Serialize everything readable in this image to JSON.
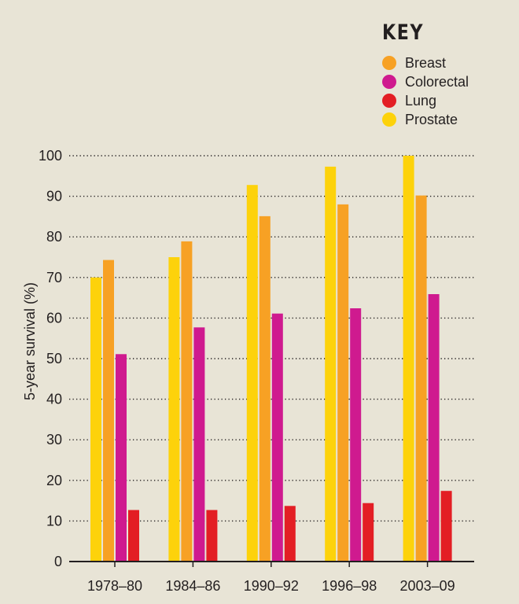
{
  "chart_data": {
    "type": "bar",
    "title": "",
    "key_title": "KEY",
    "xlabel": "",
    "ylabel": "5-year survival (%)",
    "ylim": [
      0,
      100
    ],
    "yticks": [
      0,
      10,
      20,
      30,
      40,
      50,
      60,
      70,
      80,
      90,
      100
    ],
    "grid": true,
    "legend_position": "top-right",
    "categories": [
      "1978–80",
      "1984–86",
      "1990–92",
      "1996–98",
      "2003–09"
    ],
    "series": [
      {
        "name": "Prostate",
        "color": "#fdd20b",
        "values": [
          70,
          75,
          92.8,
          97.3,
          100
        ]
      },
      {
        "name": "Breast",
        "color": "#f7a124",
        "values": [
          74.3,
          78.9,
          85.1,
          88,
          90.2
        ]
      },
      {
        "name": "Colorectal",
        "color": "#cf1a8f",
        "values": [
          51.1,
          57.7,
          61.1,
          62.4,
          65.9
        ]
      },
      {
        "name": "Lung",
        "color": "#e31e24",
        "values": [
          12.7,
          12.7,
          13.7,
          14.4,
          17.4
        ]
      }
    ],
    "legend_order": [
      "Breast",
      "Colorectal",
      "Lung",
      "Prostate"
    ]
  }
}
